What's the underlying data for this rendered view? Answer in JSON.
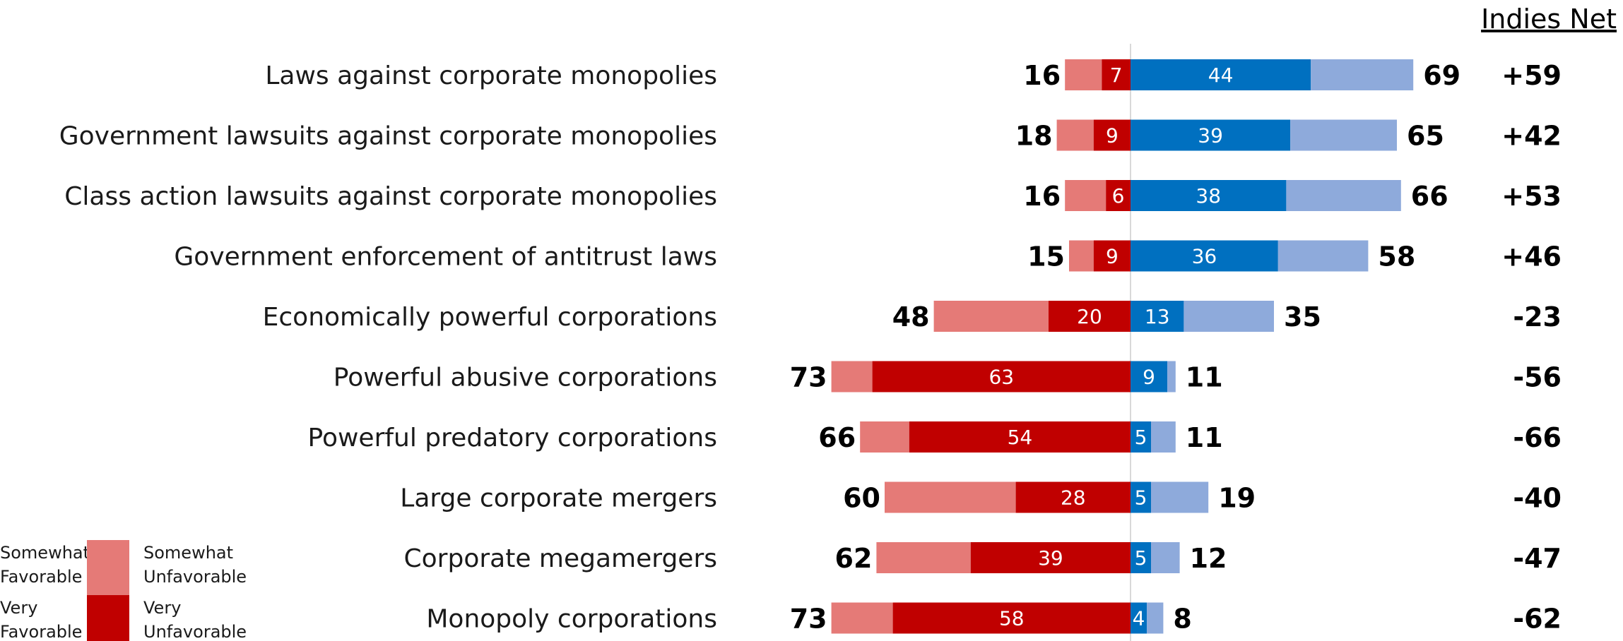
{
  "chart_data": {
    "type": "bar",
    "orientation": "horizontal-diverging",
    "net_header": "Indies Net",
    "categories": [
      "Laws against corporate monopolies",
      "Government lawsuits against corporate monopolies",
      "Class action lawsuits against corporate monopolies",
      "Government enforcement of antitrust laws",
      "Economically powerful corporations",
      "Powerful abusive corporations",
      "Powerful predatory corporations",
      "Large corporate mergers",
      "Corporate megamergers",
      "Monopoly corporations"
    ],
    "unfavorable_total": [
      16,
      18,
      16,
      15,
      48,
      73,
      66,
      60,
      62,
      73
    ],
    "very_unfavorable": [
      7,
      9,
      6,
      9,
      20,
      63,
      54,
      28,
      39,
      58
    ],
    "favorable_total": [
      69,
      65,
      66,
      58,
      35,
      11,
      11,
      19,
      12,
      8
    ],
    "very_favorable": [
      44,
      39,
      38,
      36,
      13,
      9,
      5,
      5,
      5,
      4
    ],
    "net": [
      "+59",
      "+42",
      "+53",
      "+46",
      "-23",
      "-56",
      "-66",
      "-40",
      "-47",
      "-62"
    ],
    "legend": [
      {
        "label": "Somewhat Favorable",
        "lines": [
          "Somewhat",
          "Favorable"
        ],
        "color": "#8eaadb"
      },
      {
        "label": "Very Favorable",
        "lines": [
          "Very",
          "Favorable"
        ],
        "color": "#0070c0"
      },
      {
        "label": "Somewhat Unfavorable",
        "lines": [
          "Somewhat",
          "Unfavorable"
        ],
        "color": "#e57a77"
      },
      {
        "label": "Very Unfavorable",
        "lines": [
          "Very",
          "Unfavorable"
        ],
        "color": "#c00000"
      }
    ],
    "colors": {
      "very_favorable": "#0070c0",
      "somewhat_favorable": "#8eaadb",
      "very_unfavorable": "#c00000",
      "somewhat_unfavorable": "#e57a77",
      "axis": "#d9d9d9"
    }
  }
}
